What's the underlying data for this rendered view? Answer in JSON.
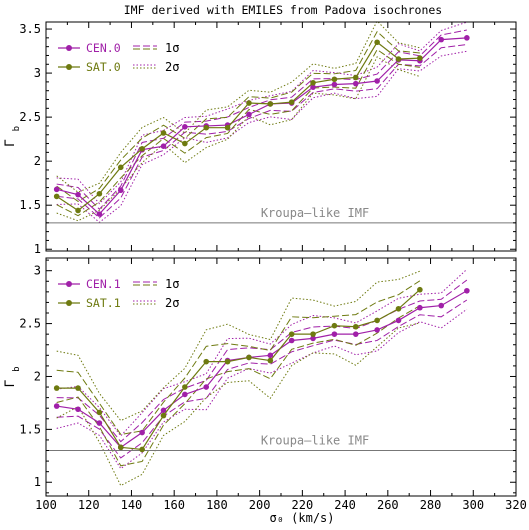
{
  "chart_data": [
    {
      "type": "line",
      "title": "IMF derived with EMILES from Padova isochrones",
      "xlabel": "σ₀ (km/s)",
      "ylabel": "Γb",
      "xlim": [
        100,
        320
      ],
      "ylim": [
        0.98,
        3.58
      ],
      "xticks": [
        100,
        120,
        140,
        160,
        180,
        200,
        220,
        240,
        260,
        280,
        300,
        320
      ],
      "yticks": [
        1,
        1.5,
        2,
        2.5,
        3,
        3.5
      ],
      "yticklabels": [
        "1",
        "1.5",
        "2",
        "2.5",
        "3",
        "3.5"
      ],
      "reference": {
        "y": 1.3,
        "label": "Kroupa–like IMF"
      },
      "legend": {
        "position": "top-left",
        "band1_label": "1σ",
        "band2_label": "2σ"
      },
      "series": [
        {
          "name": "CEN.0",
          "color": "#a020a8",
          "x": [
            105,
            115,
            125,
            135,
            145,
            155,
            165,
            175,
            185,
            195,
            205,
            215,
            225,
            235,
            245,
            255,
            265,
            275,
            285,
            297
          ],
          "y": [
            1.68,
            1.62,
            1.4,
            1.67,
            2.13,
            2.17,
            2.39,
            2.4,
            2.41,
            2.53,
            2.65,
            2.66,
            2.84,
            2.87,
            2.88,
            2.91,
            3.15,
            3.14,
            3.38,
            3.4
          ],
          "band1": [
            0.06,
            0.06,
            0.06,
            0.07,
            0.07,
            0.07,
            0.07,
            0.07,
            0.07,
            0.07,
            0.07,
            0.07,
            0.07,
            0.07,
            0.07,
            0.07,
            0.07,
            0.07,
            0.07,
            0.07
          ],
          "band2": [
            0.13,
            0.13,
            0.13,
            0.14,
            0.14,
            0.14,
            0.14,
            0.14,
            0.14,
            0.14,
            0.14,
            0.14,
            0.14,
            0.14,
            0.14,
            0.14,
            0.14,
            0.14,
            0.14,
            0.14
          ]
        },
        {
          "name": "SAT.0",
          "color": "#6e7a10",
          "x": [
            105,
            115,
            125,
            135,
            145,
            155,
            165,
            175,
            185,
            195,
            205,
            215,
            225,
            235,
            245,
            255,
            265,
            275
          ],
          "y": [
            1.6,
            1.44,
            1.63,
            1.93,
            2.14,
            2.32,
            2.2,
            2.38,
            2.38,
            2.66,
            2.65,
            2.67,
            2.89,
            2.93,
            2.95,
            3.35,
            3.16,
            3.17
          ],
          "band1": [
            0.09,
            0.09,
            0.09,
            0.09,
            0.09,
            0.09,
            0.09,
            0.09,
            0.09,
            0.09,
            0.09,
            0.09,
            0.09,
            0.09,
            0.09,
            0.09,
            0.09,
            0.09
          ],
          "band2": [
            0.18,
            0.18,
            0.18,
            0.18,
            0.18,
            0.18,
            0.18,
            0.18,
            0.18,
            0.18,
            0.18,
            0.18,
            0.18,
            0.18,
            0.18,
            0.18,
            0.18,
            0.18
          ]
        }
      ]
    },
    {
      "type": "line",
      "xlabel": "σ₀ (km/s)",
      "ylabel": "Γb",
      "xlim": [
        100,
        320
      ],
      "ylim": [
        0.87,
        3.12
      ],
      "xticks": [
        100,
        120,
        140,
        160,
        180,
        200,
        220,
        240,
        260,
        280,
        300,
        320
      ],
      "yticks": [
        1,
        1.5,
        2,
        2.5,
        3
      ],
      "yticklabels": [
        "1",
        "1.5",
        "2",
        "2.5",
        "3"
      ],
      "reference": {
        "y": 1.3,
        "label": "Kroupa–like IMF"
      },
      "legend": {
        "position": "top-left",
        "band1_label": "1σ",
        "band2_label": "2σ"
      },
      "series": [
        {
          "name": "CEN.1",
          "color": "#a020a8",
          "x": [
            105,
            115,
            125,
            135,
            145,
            155,
            165,
            175,
            185,
            195,
            205,
            215,
            225,
            235,
            245,
            255,
            265,
            275,
            285,
            297
          ],
          "y": [
            1.72,
            1.69,
            1.56,
            1.33,
            1.47,
            1.68,
            1.83,
            1.9,
            2.15,
            2.18,
            2.2,
            2.34,
            2.36,
            2.4,
            2.4,
            2.44,
            2.53,
            2.65,
            2.67,
            2.81
          ],
          "band1": [
            0.08,
            0.08,
            0.08,
            0.08,
            0.08,
            0.08,
            0.08,
            0.08,
            0.08,
            0.08,
            0.08,
            0.08,
            0.08,
            0.08,
            0.08,
            0.08,
            0.08,
            0.08,
            0.08,
            0.08
          ],
          "band2": [
            0.16,
            0.16,
            0.16,
            0.16,
            0.16,
            0.16,
            0.16,
            0.16,
            0.16,
            0.16,
            0.16,
            0.16,
            0.16,
            0.16,
            0.16,
            0.16,
            0.16,
            0.16,
            0.16,
            0.16
          ]
        },
        {
          "name": "SAT.1",
          "color": "#6e7a10",
          "x": [
            105,
            115,
            125,
            135,
            145,
            155,
            165,
            175,
            185,
            195,
            205,
            215,
            225,
            235,
            245,
            255,
            265,
            275
          ],
          "y": [
            1.89,
            1.89,
            1.66,
            1.33,
            1.31,
            1.63,
            1.9,
            2.14,
            2.14,
            2.18,
            2.15,
            2.4,
            2.4,
            2.48,
            2.47,
            2.53,
            2.64,
            2.82
          ],
          "band1": [
            0.13,
            0.13,
            0.13,
            0.13,
            0.13,
            0.13,
            0.13,
            0.13,
            0.13,
            0.13,
            0.13,
            0.13,
            0.13,
            0.13,
            0.13,
            0.13,
            0.13,
            0.13
          ],
          "band2": [
            0.27,
            0.27,
            0.27,
            0.27,
            0.27,
            0.27,
            0.27,
            0.27,
            0.27,
            0.27,
            0.27,
            0.27,
            0.27,
            0.27,
            0.27,
            0.27,
            0.27,
            0.27
          ]
        }
      ]
    }
  ]
}
